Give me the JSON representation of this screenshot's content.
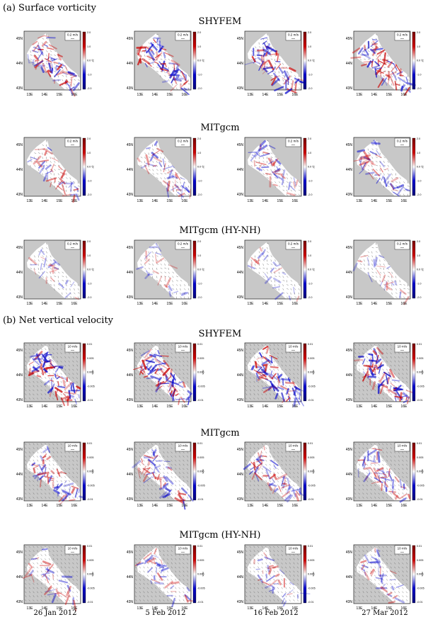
{
  "sections": [
    {
      "label": "(a) Surface vorticity",
      "kind": "vorticity",
      "vector_scale": "0.2 m/s",
      "cbar_ticks": [
        "2.0",
        "1.0",
        "0.0",
        "-1.0",
        "-2.0"
      ],
      "cbar_unit": "ζ/f",
      "rows": [
        "SHYFEM",
        "MITgcm",
        "MITgcm (HY-NH)"
      ]
    },
    {
      "label": "(b) Net vertical velocity",
      "kind": "wvel",
      "vector_scale": "10 m/s",
      "cbar_ticks": [
        "0.01",
        "0.005",
        "0.000",
        "-0.005",
        "-0.01"
      ],
      "cbar_unit": "m/s",
      "rows": [
        "SHYFEM",
        "MITgcm",
        "MITgcm (HY-NH)"
      ]
    }
  ],
  "x_ticks": [
    "13E",
    "14E",
    "15E",
    "16E"
  ],
  "y_ticks": [
    "45N",
    "44N",
    "43N"
  ],
  "dates": [
    "26 Jan 2012",
    "5 Feb 2012",
    "16 Feb 2012",
    "27 Mar 2012"
  ],
  "colors": {
    "land": "#c8c8c8",
    "positive": "#cc0000",
    "negative": "#0000cc",
    "neutral": "#ffffff"
  }
}
